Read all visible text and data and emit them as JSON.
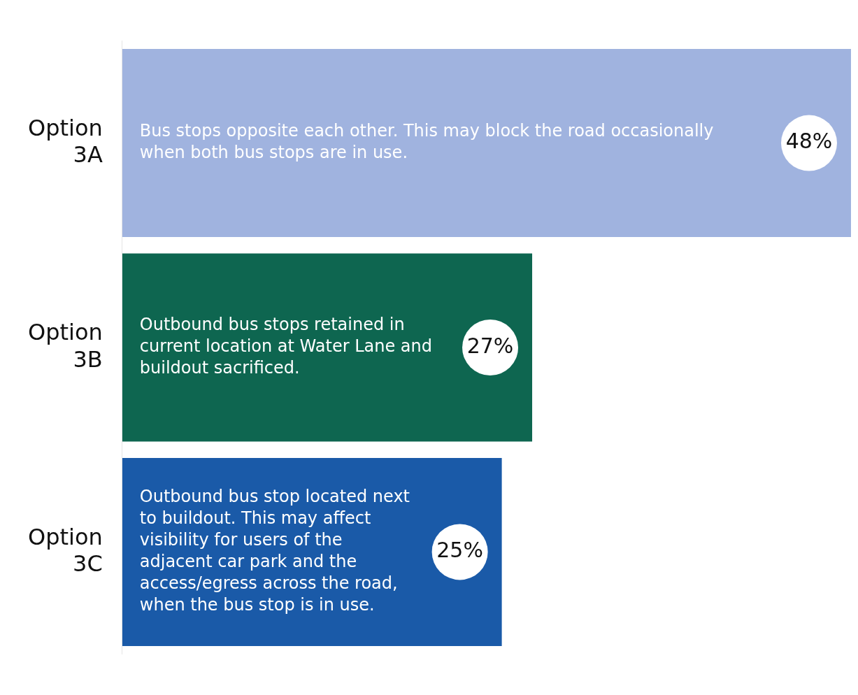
{
  "chart_data": {
    "type": "bar",
    "orientation": "horizontal",
    "categories": [
      "Option 3A",
      "Option 3B",
      "Option 3C"
    ],
    "values": [
      48,
      27,
      25
    ],
    "colors": [
      "#a0b3df",
      "#0e6650",
      "#1a5aa8"
    ],
    "value_labels": [
      "48%",
      "27%",
      "25%"
    ],
    "annotations": [
      "Bus stops opposite each other. This may block the road occasionally when both bus stops are in use.",
      "Outbound bus stops retained in current location at Water Lane and buildout sacrificed.",
      "Outbound bus stop located next to buildout. This may affect visibility for users of the adjacent car park and the access/egress across the road, when the bus stop is in use."
    ],
    "tick_labels": "y",
    "grid": false,
    "legend": false
  }
}
